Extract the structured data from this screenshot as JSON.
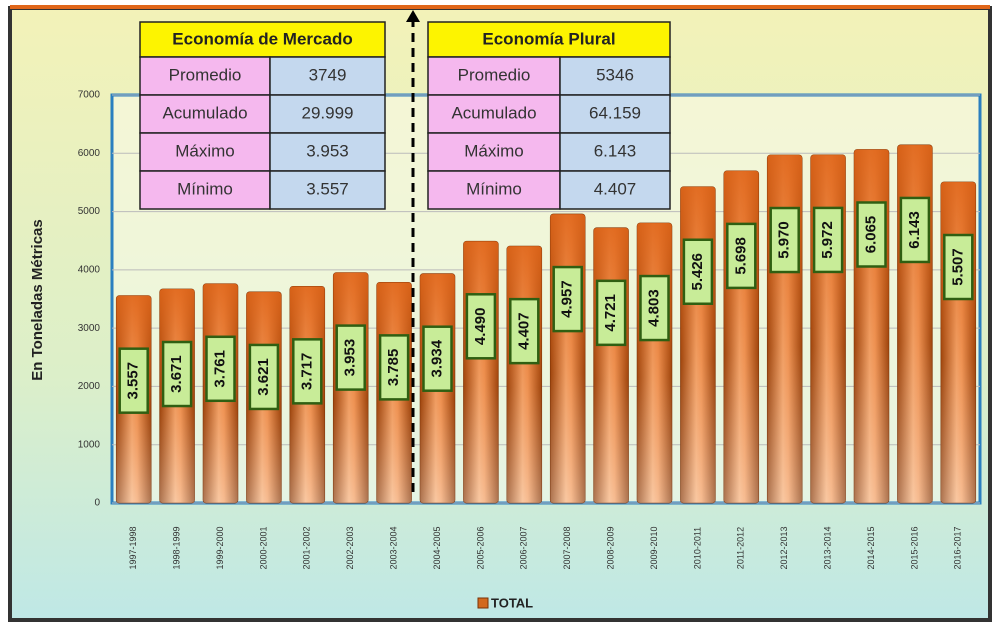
{
  "chart_data": {
    "type": "bar",
    "y_label": "En Toneladas Métricas",
    "categories": [
      "1997-1998",
      "1998-1999",
      "1999-2000",
      "2000-2001",
      "2001-2002",
      "2002-2003",
      "2003-2004",
      "2004-2005",
      "2005-2006",
      "2006-2007",
      "2007-2008",
      "2008-2009",
      "2009-2010",
      "2010-2011",
      "2011-2012",
      "2012-2013",
      "2013-2014",
      "2014-2015",
      "2015-2016",
      "2016-2017"
    ],
    "series": [
      {
        "name": "TOTAL",
        "color": "#d2691e",
        "values": [
          3557,
          3671,
          3761,
          3621,
          3717,
          3953,
          3785,
          3934,
          4490,
          4407,
          4957,
          4721,
          4803,
          5426,
          5698,
          5970,
          5972,
          6065,
          6143,
          5507
        ],
        "value_labels": [
          "3.557",
          "3.671",
          "3.761",
          "3.621",
          "3.717",
          "3.953",
          "3.785",
          "3.934",
          "4.490",
          "4.407",
          "4.957",
          "4.721",
          "4.803",
          "5.426",
          "5.698",
          "5.970",
          "5.972",
          "6.065",
          "6.143",
          "5.507"
        ]
      }
    ],
    "ylim": [
      0,
      7000
    ],
    "yticks": [
      0,
      1000,
      2000,
      3000,
      4000,
      5000,
      6000,
      7000
    ],
    "grid": true,
    "tables": [
      {
        "title": "Economía de Mercado",
        "rows": [
          [
            "Promedio",
            "3749"
          ],
          [
            "Acumulado",
            "29.999"
          ],
          [
            "Máximo",
            "3.953"
          ],
          [
            "Mínimo",
            "3.557"
          ]
        ]
      },
      {
        "title": "Economía Plural",
        "rows": [
          [
            "Promedio",
            "5346"
          ],
          [
            "Acumulado",
            "64.159"
          ],
          [
            "Máximo",
            "6.143"
          ],
          [
            "Mínimo",
            "4.407"
          ]
        ]
      }
    ]
  }
}
